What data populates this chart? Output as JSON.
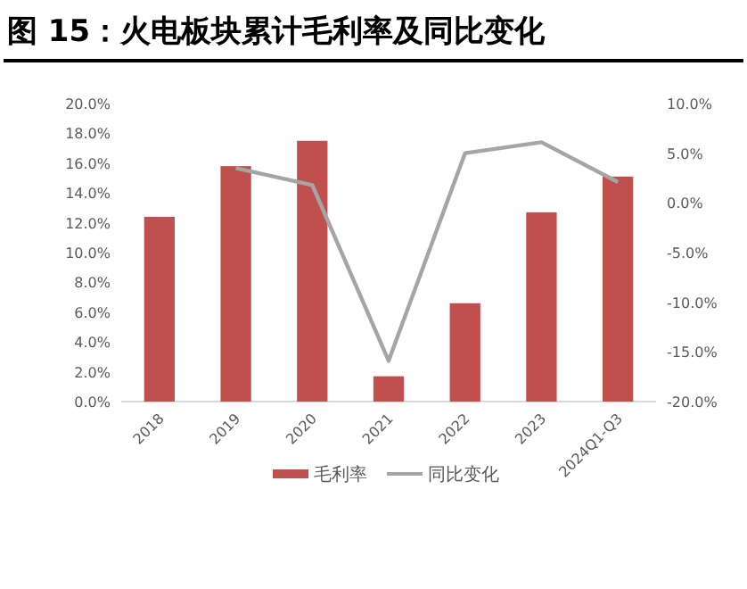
{
  "chart_data": {
    "type": "bar",
    "title": "图 15：火电板块累计毛利率及同比变化",
    "categories": [
      "2018",
      "2019",
      "2020",
      "2021",
      "2022",
      "2023",
      "2024Q1-Q3"
    ],
    "series": [
      {
        "name": "毛利率",
        "color": "#c0504d",
        "values": [
          12.4,
          15.8,
          17.5,
          1.7,
          6.6,
          12.7,
          15.1
        ]
      },
      {
        "name": "同比变化",
        "type": "line",
        "axis": "y2",
        "color": "#a5a5a5",
        "values": [
          null,
          3.5,
          1.8,
          -15.9,
          5.0,
          6.1,
          2.1
        ]
      }
    ],
    "ylim": [
      0,
      20
    ],
    "yticks": [
      {
        "value": 0,
        "label": "0.0%"
      },
      {
        "value": 2,
        "label": "2.0%"
      },
      {
        "value": 4,
        "label": "4.0%"
      },
      {
        "value": 6,
        "label": "6.0%"
      },
      {
        "value": 8,
        "label": "8.0%"
      },
      {
        "value": 10,
        "label": "10.0%"
      },
      {
        "value": 12,
        "label": "12.0%"
      },
      {
        "value": 14,
        "label": "14.0%"
      },
      {
        "value": 16,
        "label": "16.0%"
      },
      {
        "value": 18,
        "label": "18.0%"
      },
      {
        "value": 20,
        "label": "20.0%"
      }
    ],
    "y2lim": [
      -20,
      10
    ],
    "y2ticks": [
      {
        "value": -20,
        "label": "-20.0%"
      },
      {
        "value": -15,
        "label": "-15.0%"
      },
      {
        "value": -10,
        "label": "-10.0%"
      },
      {
        "value": -5,
        "label": "-5.0%"
      },
      {
        "value": 0,
        "label": "0.0%"
      },
      {
        "value": 5,
        "label": "5.0%"
      },
      {
        "value": 10,
        "label": "10.0%"
      }
    ],
    "legend": "bottom"
  }
}
